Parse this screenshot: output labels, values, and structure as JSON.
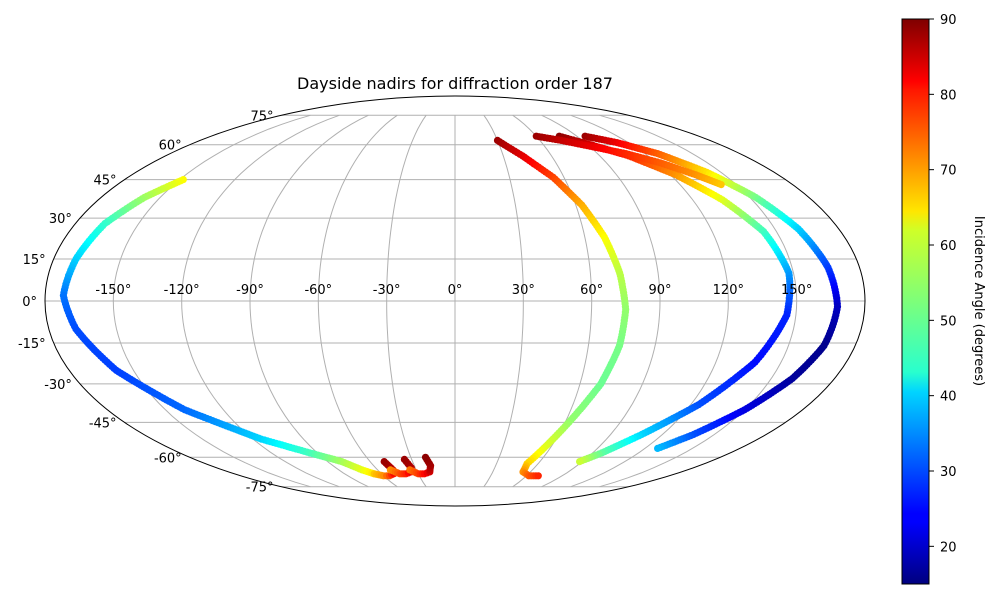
{
  "chart_data": {
    "type": "scatter",
    "projection": "mollweide",
    "title": "Dayside nadirs for diffraction order 187",
    "xlabel": "",
    "ylabel": "",
    "lon_ticks": [
      "-150°",
      "-120°",
      "-90°",
      "-60°",
      "-30°",
      "0°",
      "30°",
      "60°",
      "90°",
      "120°",
      "150°"
    ],
    "lat_ticks": [
      "75°",
      "60°",
      "45°",
      "30°",
      "15°",
      "0°",
      "-15°",
      "-30°",
      "-45°",
      "-60°",
      "-75°"
    ],
    "grid": true,
    "colorbar": {
      "label": "Incidence Angle (degrees)",
      "colormap": "jet",
      "range": [
        15,
        90
      ],
      "ticks": [
        "20",
        "30",
        "40",
        "50",
        "60",
        "70",
        "80",
        "90"
      ]
    },
    "series": [
      {
        "lon": [
          -148,
          -158,
          -166,
          -170,
          -172,
          -168,
          -158,
          -140,
          -115,
          -95,
          -80,
          -72,
          -66
        ],
        "lat": [
          45,
          38,
          28,
          15,
          2,
          -10,
          -25,
          -40,
          -52,
          -58,
          -62,
          -66,
          -68
        ],
        "incidence": [
          62,
          55,
          47,
          40,
          33,
          30,
          29,
          32,
          40,
          48,
          55,
          60,
          64
        ]
      },
      {
        "lon": [
          -66,
          -60,
          -55,
          -50,
          -48,
          -50
        ],
        "lat": [
          -68,
          -69,
          -69,
          -68,
          -66,
          -62
        ],
        "incidence": [
          66,
          70,
          75,
          80,
          85,
          88
        ]
      },
      {
        "lon": [
          -50,
          -45,
          -40,
          -35,
          -33,
          -35
        ],
        "lat": [
          -66,
          -68,
          -68,
          -67,
          -65,
          -61
        ],
        "incidence": [
          70,
          75,
          78,
          82,
          86,
          88
        ]
      },
      {
        "lon": [
          -35,
          -30,
          -25,
          -20,
          -18,
          -20
        ],
        "lat": [
          -66,
          -68,
          -68,
          -67,
          -64,
          -60
        ],
        "incidence": [
          72,
          76,
          80,
          84,
          87,
          89
        ]
      },
      {
        "lon": [
          30,
          42,
          54,
          63,
          69,
          73,
          75,
          74,
          70,
          62,
          56,
          52,
          54,
          62,
          70
        ],
        "lat": [
          62,
          55,
          46,
          35,
          23,
          10,
          -3,
          -16,
          -30,
          -45,
          -56,
          -63,
          -67,
          -69,
          -69
        ],
        "incidence": [
          88,
          83,
          76,
          68,
          62,
          57,
          54,
          52,
          51,
          54,
          60,
          65,
          70,
          74,
          78
        ]
      },
      {
        "lon": [
          77,
          92,
          108,
          123,
          135,
          144,
          148,
          146,
          138,
          124,
          108,
          96,
          88
        ],
        "lat": [
          64,
          60,
          55,
          47,
          37,
          25,
          10,
          -5,
          -22,
          -38,
          -50,
          -58,
          -62
        ],
        "incidence": [
          89,
          84,
          78,
          70,
          60,
          48,
          36,
          27,
          25,
          30,
          40,
          50,
          58
        ]
      },
      {
        "lon": [
          96,
          112,
          128,
          142,
          153,
          161,
          166,
          168,
          166,
          160,
          150,
          138,
          128
        ],
        "lat": [
          64,
          61,
          56,
          48,
          38,
          26,
          12,
          -2,
          -16,
          -28,
          -40,
          -50,
          -56
        ],
        "incidence": [
          88,
          82,
          74,
          64,
          52,
          40,
          29,
          20,
          16,
          17,
          22,
          30,
          38
        ]
      },
      {
        "lon": [
          60,
          75,
          92,
          108,
          122,
          134,
          142
        ],
        "lat": [
          64,
          62,
          59,
          56,
          52,
          47,
          43
        ],
        "incidence": [
          88,
          85,
          82,
          78,
          74,
          70,
          66
        ]
      }
    ]
  }
}
